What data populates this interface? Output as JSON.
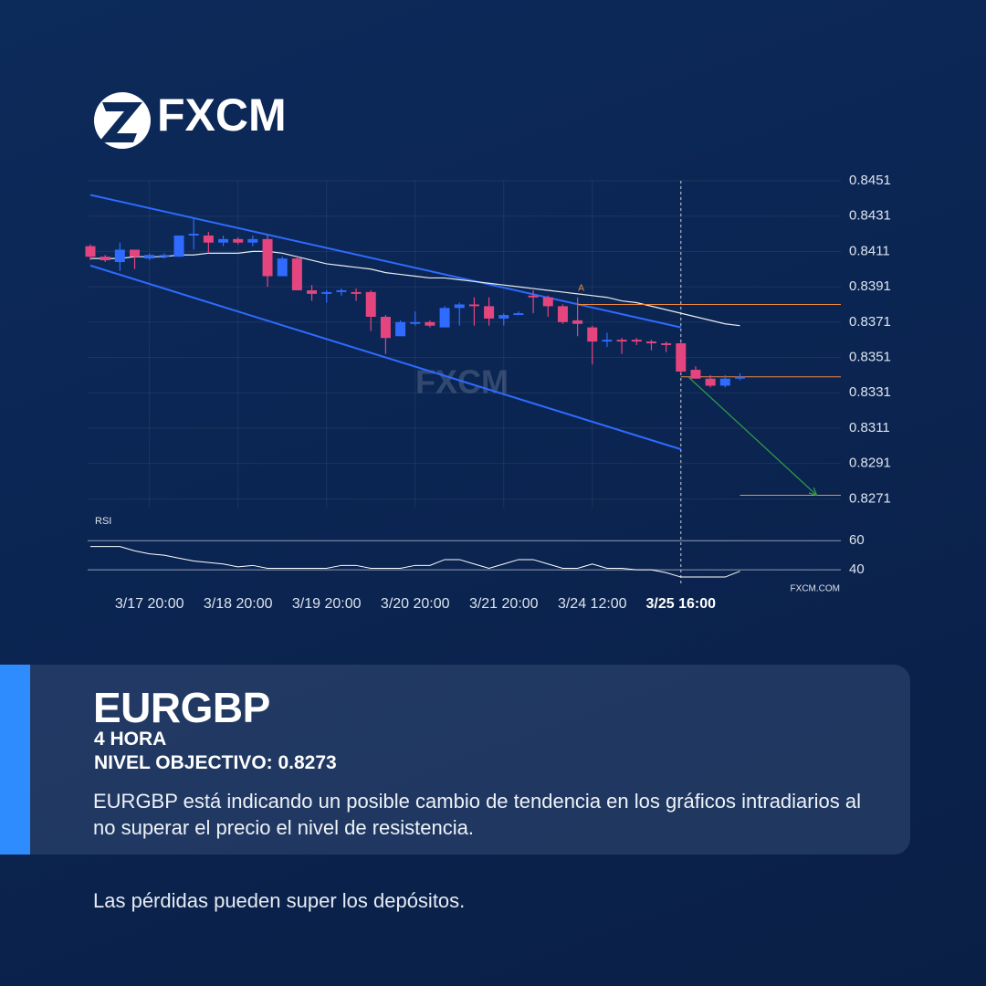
{
  "brand": "FXCM",
  "chart_data": {
    "type": "candlestick",
    "categories": [
      null,
      null,
      null,
      null,
      "3/17 20:00",
      null,
      null,
      null,
      null,
      null,
      "3/18 20:00",
      null,
      null,
      null,
      null,
      null,
      "3/19 20:00",
      null,
      null,
      null,
      null,
      null,
      "3/20 20:00",
      null,
      null,
      null,
      null,
      null,
      "3/21 20:00",
      null,
      null,
      null,
      null,
      null,
      "3/24 12:00",
      null,
      null,
      null,
      null,
      null,
      "3/25 16:00",
      null,
      null,
      null,
      null
    ],
    "open": [
      0.8414,
      0.8408,
      0.8405,
      0.8412,
      0.8407,
      0.8408,
      0.8408,
      0.842,
      0.842,
      0.8416,
      0.8418,
      0.8416,
      0.8418,
      0.8397,
      0.8407,
      0.8389,
      0.8387,
      0.8388,
      0.8388,
      0.8388,
      0.8374,
      0.8363,
      0.837,
      0.8371,
      0.8368,
      0.8379,
      0.8381,
      0.838,
      0.8373,
      0.8375,
      0.8386,
      0.8385,
      0.838,
      0.8372,
      0.8368,
      0.836,
      0.8361,
      0.8361,
      0.836,
      0.8359,
      0.8359,
      0.8344,
      0.8339,
      0.8335,
      0.8339
    ],
    "high": [
      0.8415,
      0.8409,
      0.8416,
      0.8412,
      0.841,
      0.841,
      0.842,
      0.843,
      0.8422,
      0.842,
      0.8419,
      0.842,
      0.842,
      0.8408,
      0.8408,
      0.8392,
      0.8389,
      0.839,
      0.839,
      0.8389,
      0.8375,
      0.8372,
      0.8377,
      0.8372,
      0.838,
      0.8382,
      0.8385,
      0.8385,
      0.8376,
      0.8377,
      0.8389,
      0.8386,
      0.8381,
      0.8385,
      0.8369,
      0.8365,
      0.8362,
      0.8362,
      0.8361,
      0.836,
      0.836,
      0.8346,
      0.8341,
      0.8341,
      0.8342
    ],
    "low": [
      0.8406,
      0.8405,
      0.84,
      0.8401,
      0.8406,
      0.8407,
      0.8408,
      0.8412,
      0.841,
      0.8414,
      0.8415,
      0.8414,
      0.8391,
      0.8397,
      0.8389,
      0.8383,
      0.8382,
      0.8386,
      0.8383,
      0.8366,
      0.8353,
      0.8363,
      0.8369,
      0.8368,
      0.8368,
      0.8369,
      0.8369,
      0.8369,
      0.8369,
      0.8375,
      0.8376,
      0.8374,
      0.837,
      0.8363,
      0.8347,
      0.8357,
      0.8353,
      0.8358,
      0.8355,
      0.8354,
      0.8342,
      0.8339,
      0.8334,
      0.8334,
      0.8338
    ],
    "close": [
      0.8408,
      0.8406,
      0.8412,
      0.8408,
      0.8409,
      0.8409,
      0.842,
      0.8421,
      0.8416,
      0.8418,
      0.8416,
      0.8418,
      0.8397,
      0.8407,
      0.8389,
      0.8387,
      0.8388,
      0.8389,
      0.8387,
      0.8374,
      0.8362,
      0.8371,
      0.8371,
      0.8369,
      0.8379,
      0.8381,
      0.838,
      0.8373,
      0.8375,
      0.8376,
      0.8385,
      0.838,
      0.8371,
      0.837,
      0.836,
      0.8361,
      0.836,
      0.836,
      0.8359,
      0.8358,
      0.8343,
      0.8339,
      0.8335,
      0.8339,
      0.834
    ],
    "up_color": "#2f6bff",
    "down_color": "#e4457f",
    "moving_average": {
      "color": "#e8ecf2",
      "values": [
        0.8407,
        0.8407,
        0.8407,
        0.8408,
        0.8408,
        0.8408,
        0.8409,
        0.8409,
        0.841,
        0.841,
        0.841,
        0.8411,
        0.8411,
        0.841,
        0.8408,
        0.8406,
        0.8404,
        0.8403,
        0.8402,
        0.8401,
        0.8399,
        0.8398,
        0.8397,
        0.8396,
        0.8396,
        0.8395,
        0.8394,
        0.8393,
        0.8392,
        0.8391,
        0.839,
        0.8389,
        0.8388,
        0.8387,
        0.8386,
        0.8385,
        0.8383,
        0.8382,
        0.838,
        0.8378,
        0.8376,
        0.8374,
        0.8372,
        0.837,
        0.8369
      ]
    },
    "channel": {
      "color": "#2f6bff",
      "lines": [
        {
          "x": [
            0,
            40
          ],
          "y": [
            0.8443,
            0.8368
          ]
        },
        {
          "x": [
            0,
            40
          ],
          "y": [
            0.8403,
            0.8299
          ]
        }
      ]
    },
    "levels": {
      "color": "#f08a3c",
      "items": [
        {
          "value": 0.8381,
          "from": 33
        },
        {
          "value": 0.834,
          "from": 40
        },
        {
          "value": 0.8273,
          "from": 44
        }
      ]
    },
    "arrow": {
      "color": "#2f9a4a",
      "x": [
        40.5,
        49.2
      ],
      "y": [
        0.834,
        0.8273
      ]
    },
    "annotation": {
      "text": "A",
      "x": 33,
      "y": 0.8385
    },
    "cursor": 40,
    "ylim": [
      0.8266,
      0.8451
    ],
    "yticks": [
      0.8451,
      0.8431,
      0.8411,
      0.8391,
      0.8371,
      0.8351,
      0.8331,
      0.8311,
      0.8291,
      0.8271
    ],
    "grid": true,
    "rsi": {
      "name": "RSI",
      "ylim": [
        30,
        74
      ],
      "yticks": [
        60,
        40
      ],
      "values": [
        56,
        56,
        56,
        53,
        51,
        50,
        48,
        46,
        45,
        44,
        42,
        43,
        41,
        41,
        41,
        41,
        41,
        43,
        43,
        41,
        41,
        41,
        43,
        43,
        47,
        47,
        44,
        41,
        44,
        47,
        47,
        44,
        41,
        41,
        44,
        41,
        41,
        40,
        40,
        38,
        35,
        35,
        35,
        35,
        39
      ]
    },
    "source": "FXCM.COM"
  },
  "info": {
    "symbol": "EURGBP",
    "timeframe": "4 HORA",
    "target": "NIVEL OBJECTIVO: 0.8273",
    "description": "EURGBP está indicando un posible cambio de tendencia en los gráficos intradiarios al no superar el precio el nivel de resistencia."
  },
  "disclaimer": "Las pérdidas pueden super los depósitos."
}
